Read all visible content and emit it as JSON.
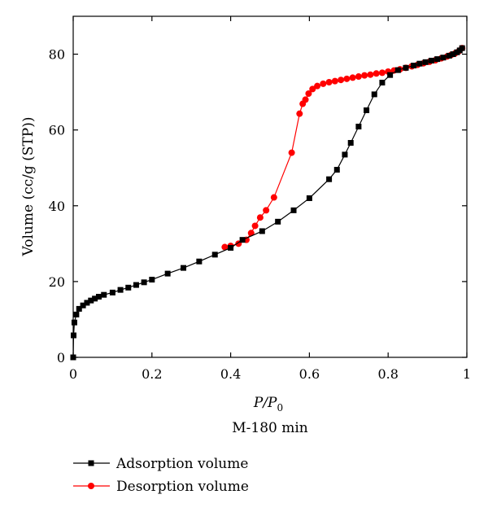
{
  "chart_data": {
    "type": "line",
    "xlabel": "P/P0",
    "xlabel_main": "P/P",
    "xlabel_sub": "0",
    "ylabel": "Volume (cc/g (STP))",
    "subtitle": "M-180 min",
    "xlim": [
      0,
      1
    ],
    "ylim": [
      0,
      90
    ],
    "x_ticks": [
      0,
      0.2,
      0.4,
      0.6,
      0.8,
      1
    ],
    "x_tick_labels": [
      "0",
      "0.2",
      "0.4",
      "0.6",
      "0.8",
      "1"
    ],
    "y_ticks": [
      0,
      20,
      40,
      60,
      80
    ],
    "y_tick_labels": [
      "0",
      "20",
      "40",
      "60",
      "80"
    ],
    "grid": false,
    "legend_position": "bottom-left",
    "series": [
      {
        "name": "Adsorption volume",
        "color": "#000000",
        "marker": "square",
        "points": [
          [
            0.0,
            0.0
          ],
          [
            0.001,
            5.8
          ],
          [
            0.003,
            9.2
          ],
          [
            0.008,
            11.3
          ],
          [
            0.015,
            12.8
          ],
          [
            0.025,
            13.7
          ],
          [
            0.035,
            14.4
          ],
          [
            0.045,
            15.0
          ],
          [
            0.055,
            15.5
          ],
          [
            0.065,
            16.0
          ],
          [
            0.078,
            16.5
          ],
          [
            0.1,
            17.1
          ],
          [
            0.12,
            17.8
          ],
          [
            0.14,
            18.4
          ],
          [
            0.16,
            19.1
          ],
          [
            0.18,
            19.8
          ],
          [
            0.2,
            20.5
          ],
          [
            0.24,
            22.1
          ],
          [
            0.28,
            23.6
          ],
          [
            0.32,
            25.3
          ],
          [
            0.36,
            27.1
          ],
          [
            0.4,
            28.9
          ],
          [
            0.43,
            31.0
          ],
          [
            0.48,
            33.3
          ],
          [
            0.52,
            35.8
          ],
          [
            0.56,
            38.8
          ],
          [
            0.6,
            42.0
          ],
          [
            0.65,
            47.0
          ],
          [
            0.67,
            49.5
          ],
          [
            0.69,
            53.5
          ],
          [
            0.705,
            56.6
          ],
          [
            0.725,
            60.9
          ],
          [
            0.745,
            65.2
          ],
          [
            0.765,
            69.4
          ],
          [
            0.785,
            72.5
          ],
          [
            0.805,
            74.5
          ],
          [
            0.825,
            75.8
          ],
          [
            0.845,
            76.4
          ],
          [
            0.865,
            77.0
          ],
          [
            0.88,
            77.5
          ],
          [
            0.895,
            77.9
          ],
          [
            0.91,
            78.3
          ],
          [
            0.925,
            78.7
          ],
          [
            0.94,
            79.1
          ],
          [
            0.955,
            79.6
          ],
          [
            0.965,
            80.0
          ],
          [
            0.975,
            80.5
          ],
          [
            0.982,
            81.0
          ],
          [
            0.988,
            81.6
          ]
        ]
      },
      {
        "name": "Desorption volume",
        "color": "#ff0000",
        "marker": "circle",
        "points": [
          [
            0.988,
            81.6
          ],
          [
            0.98,
            80.8
          ],
          [
            0.97,
            80.2
          ],
          [
            0.96,
            79.8
          ],
          [
            0.95,
            79.4
          ],
          [
            0.935,
            78.9
          ],
          [
            0.92,
            78.4
          ],
          [
            0.905,
            78.0
          ],
          [
            0.89,
            77.6
          ],
          [
            0.875,
            77.2
          ],
          [
            0.86,
            76.8
          ],
          [
            0.845,
            76.4
          ],
          [
            0.83,
            76.0
          ],
          [
            0.815,
            75.7
          ],
          [
            0.8,
            75.4
          ],
          [
            0.785,
            75.1
          ],
          [
            0.77,
            74.9
          ],
          [
            0.755,
            74.6
          ],
          [
            0.74,
            74.4
          ],
          [
            0.725,
            74.1
          ],
          [
            0.71,
            73.8
          ],
          [
            0.695,
            73.5
          ],
          [
            0.68,
            73.2
          ],
          [
            0.665,
            72.9
          ],
          [
            0.65,
            72.6
          ],
          [
            0.635,
            72.2
          ],
          [
            0.62,
            71.6
          ],
          [
            0.608,
            70.8
          ],
          [
            0.598,
            69.6
          ],
          [
            0.59,
            68.0
          ],
          [
            0.583,
            66.9
          ],
          [
            0.575,
            64.3
          ],
          [
            0.555,
            54.0
          ],
          [
            0.51,
            42.2
          ],
          [
            0.49,
            38.8
          ],
          [
            0.475,
            36.9
          ],
          [
            0.462,
            34.7
          ],
          [
            0.452,
            32.8
          ],
          [
            0.44,
            31.0
          ],
          [
            0.42,
            30.0
          ],
          [
            0.4,
            29.4
          ],
          [
            0.385,
            29.1
          ]
        ]
      }
    ]
  }
}
